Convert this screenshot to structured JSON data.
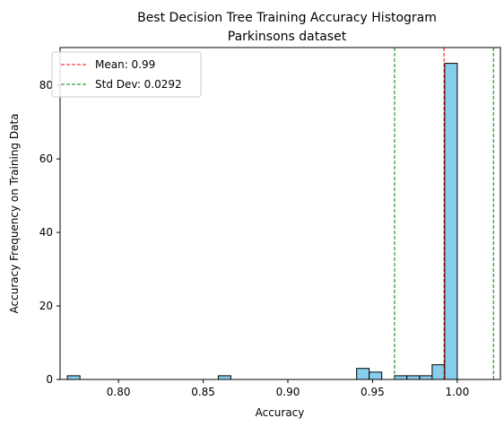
{
  "chart_data": {
    "type": "bar",
    "title": "Best Decision Tree Training Accuracy Histogram",
    "subtitle": "Parkinsons dataset",
    "xlabel": "Accuracy",
    "ylabel": "Accuracy Frequency on Training Data",
    "xlim": [
      0.7655,
      1.0255
    ],
    "ylim": [
      0,
      90.3
    ],
    "xticks": [
      0.8,
      0.85,
      0.9,
      0.95,
      1.0
    ],
    "xtick_labels": [
      "0.80",
      "0.85",
      "0.90",
      "0.95",
      "1.00"
    ],
    "yticks": [
      0,
      20,
      40,
      60,
      80
    ],
    "ytick_labels": [
      "0",
      "20",
      "40",
      "60",
      "80"
    ],
    "bin_width": 0.00743,
    "bars": [
      {
        "x_start": 0.7698,
        "value": 1
      },
      {
        "x_start": 0.8589,
        "value": 1
      },
      {
        "x_start": 0.9406,
        "value": 3
      },
      {
        "x_start": 0.948,
        "value": 2
      },
      {
        "x_start": 0.9629,
        "value": 1
      },
      {
        "x_start": 0.9703,
        "value": 1
      },
      {
        "x_start": 0.9778,
        "value": 1
      },
      {
        "x_start": 0.9852,
        "value": 4
      },
      {
        "x_start": 0.9926,
        "value": 86
      }
    ],
    "bar_color": "#87CEEB",
    "bar_edge_color": "#000000",
    "reference_lines": [
      {
        "name": "Mean: 0.99",
        "x": 0.9922,
        "color": "#ff0000",
        "style": "dashed"
      },
      {
        "name": "Std Dev: 0.0292",
        "x": 0.963,
        "color": "#008000",
        "style": "dashed"
      },
      {
        "name": "Std Dev: 0.0292",
        "x": 1.0214,
        "color": "#008000",
        "style": "dashed"
      }
    ],
    "legend": [
      {
        "label": "Mean: 0.99",
        "color": "#ff0000"
      },
      {
        "label": "Std Dev: 0.0292",
        "color": "#008000"
      }
    ],
    "legend_position": "top-left",
    "grid": false
  }
}
